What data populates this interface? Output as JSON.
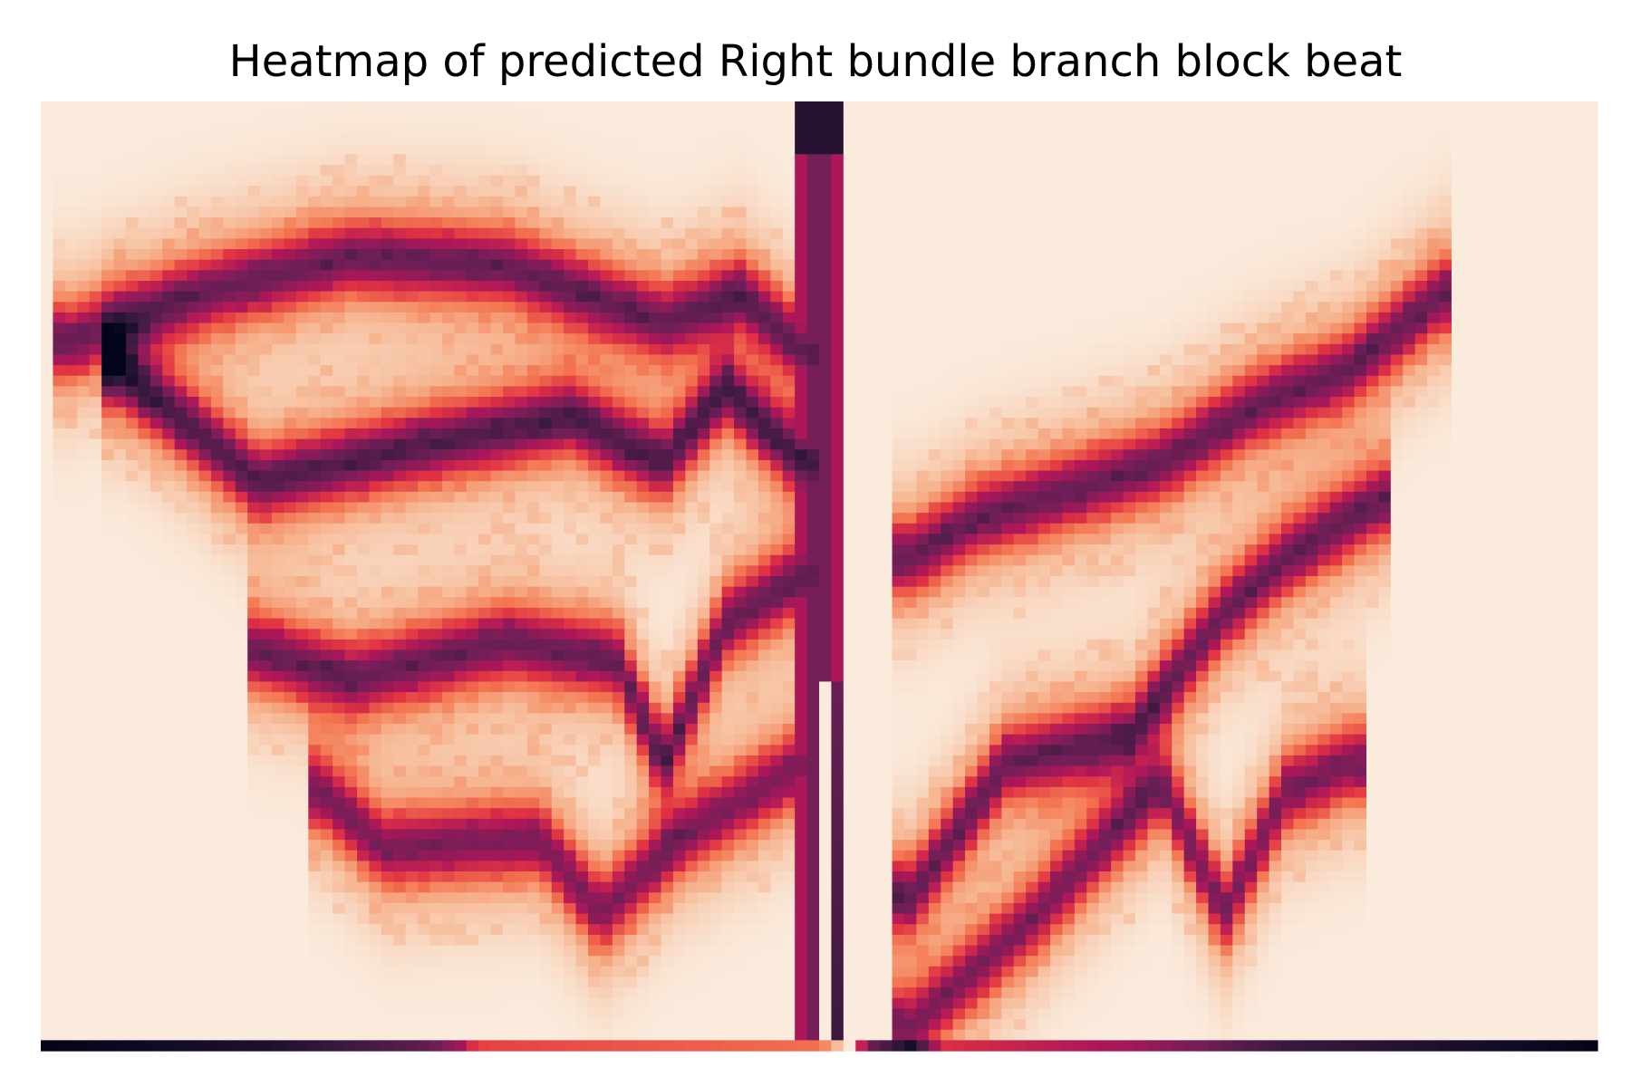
{
  "chart_data": {
    "type": "heatmap",
    "title": "Heatmap of predicted Right bundle branch block beat",
    "xlabel": "",
    "ylabel": "",
    "axes_visible": false,
    "colorbar_visible": false,
    "colormap": "rocket",
    "colormap_stops": [
      "#faebdd",
      "#f6b48f",
      "#f37651",
      "#e13342",
      "#ad1759",
      "#701f57",
      "#35193e",
      "#03051a"
    ],
    "n_columns": 128,
    "n_rows": 90,
    "signal_band": {
      "description": "vertical high-density QRS column near centre",
      "columns": [
        62,
        63,
        64,
        65
      ],
      "peak_top_density": 0.9
    },
    "trace_series": [
      {
        "x": [
          0.02,
          0.1,
          0.2,
          0.3,
          0.4,
          0.45,
          0.49
        ],
        "y": [
          0.75,
          0.8,
          0.84,
          0.83,
          0.77,
          0.8,
          0.74
        ],
        "density": 0.55
      },
      {
        "x": [
          0.05,
          0.14,
          0.25,
          0.34,
          0.4,
          0.44,
          0.49
        ],
        "y": [
          0.72,
          0.6,
          0.64,
          0.67,
          0.62,
          0.7,
          0.62
        ],
        "density": 0.6
      },
      {
        "x": [
          0.14,
          0.2,
          0.3,
          0.37,
          0.4,
          0.44,
          0.49
        ],
        "y": [
          0.42,
          0.39,
          0.43,
          0.41,
          0.3,
          0.45,
          0.5
        ],
        "density": 0.55
      },
      {
        "x": [
          0.18,
          0.22,
          0.32,
          0.36,
          0.41,
          0.49
        ],
        "y": [
          0.27,
          0.21,
          0.22,
          0.14,
          0.22,
          0.3
        ],
        "density": 0.5
      },
      {
        "x": [
          0.56,
          0.6,
          0.66,
          0.72,
          0.78,
          0.84,
          0.9
        ],
        "y": [
          0.52,
          0.56,
          0.59,
          0.62,
          0.68,
          0.72,
          0.8
        ],
        "density": 0.55
      },
      {
        "x": [
          0.56,
          0.62,
          0.7,
          0.76,
          0.8,
          0.86
        ],
        "y": [
          0.16,
          0.3,
          0.33,
          0.46,
          0.52,
          0.58
        ],
        "density": 0.55
      },
      {
        "x": [
          0.56,
          0.64,
          0.72,
          0.76,
          0.8,
          0.84
        ],
        "y": [
          0.02,
          0.14,
          0.28,
          0.14,
          0.27,
          0.3
        ],
        "density": 0.5
      }
    ],
    "baseline_row_profile": [
      {
        "x": 0.0,
        "density": 1.0
      },
      {
        "x": 0.15,
        "density": 0.92
      },
      {
        "x": 0.25,
        "density": 0.75
      },
      {
        "x": 0.27,
        "density": 0.6
      },
      {
        "x": 0.28,
        "density": 0.4
      },
      {
        "x": 0.5,
        "density": 0.3
      },
      {
        "x": 0.52,
        "density": 0.0
      },
      {
        "x": 0.53,
        "density": 0.7
      },
      {
        "x": 0.56,
        "density": 0.95
      },
      {
        "x": 0.58,
        "density": 0.45
      },
      {
        "x": 0.7,
        "density": 0.6
      },
      {
        "x": 0.8,
        "density": 0.85
      },
      {
        "x": 1.0,
        "density": 1.0
      }
    ]
  }
}
